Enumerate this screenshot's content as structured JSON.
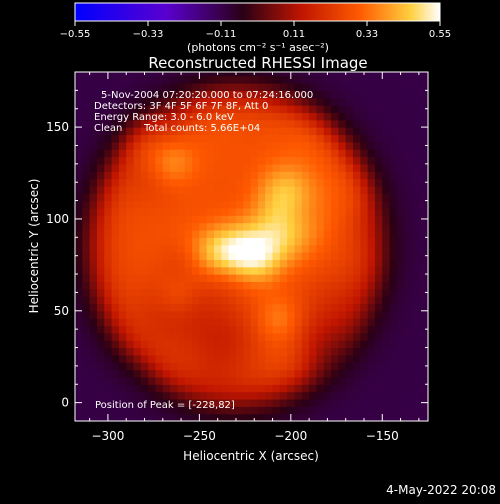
{
  "chart_data": {
    "type": "heatmap",
    "title": "Reconstructed RHESSI Image",
    "xlabel": "Heliocentric X (arcsec)",
    "ylabel": "Heliocentric Y (arcsec)",
    "xlim": [
      -318,
      -125
    ],
    "ylim": [
      -10,
      180
    ],
    "x_ticks": [
      -300,
      -250,
      -200,
      -150
    ],
    "y_ticks": [
      0,
      50,
      100,
      150
    ],
    "x_tick_labels": [
      "−300",
      "−250",
      "−200",
      "−150"
    ],
    "y_tick_labels": [
      "0",
      "50",
      "100",
      "150"
    ],
    "colorbar": {
      "range": [
        -0.55,
        0.55
      ],
      "ticks": [
        -0.55,
        -0.33,
        -0.11,
        0.11,
        0.33,
        0.55
      ],
      "tick_labels": [
        "−0.55",
        "−0.33",
        "−0.11",
        "0.11",
        "0.33",
        "0.55"
      ],
      "unit_label": "(photons cm⁻² s⁻¹ asec⁻²)",
      "colors": [
        "#0000ff",
        "#5a00d0",
        "#2a0015",
        "#c01500",
        "#ff5a00",
        "#ffd040",
        "#ffffff"
      ]
    },
    "annotations": {
      "time_range": "5-Nov-2004 07:20:20.000 to 07:24:16.000",
      "detectors": "Detectors: 3F 4F 5F 6F 7F 8F, Att 0",
      "energy_range": "Energy Range: 3.0 - 6.0 keV",
      "method": "Clean",
      "total_counts": "Total counts: 5.66E+04",
      "peak": "Position of Peak = [-228,82]"
    },
    "peak_position": [
      -228,
      82
    ],
    "source_center": [
      -230,
      85
    ],
    "background_level": -0.1,
    "date_stamp": "4-May-2022 20:08"
  }
}
